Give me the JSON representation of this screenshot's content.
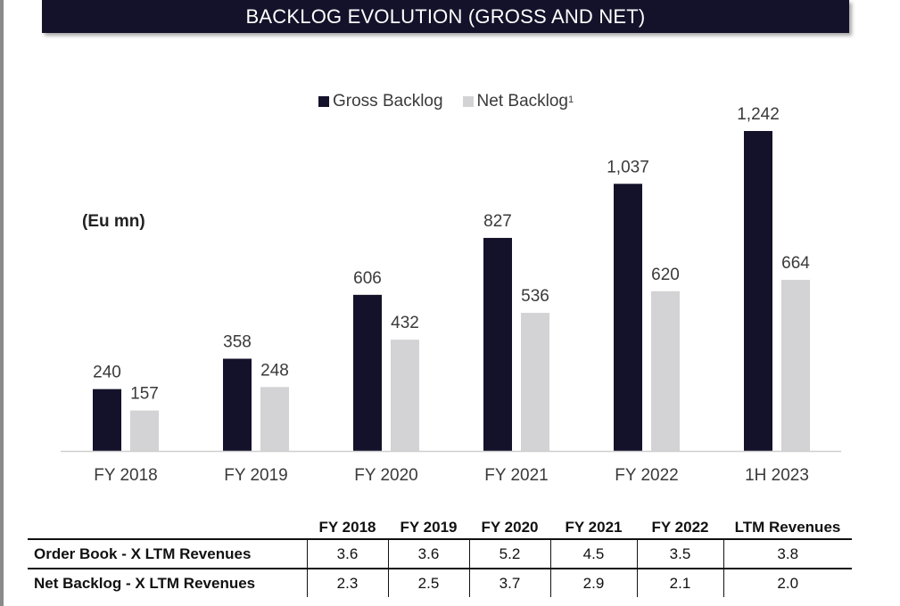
{
  "title": "BACKLOG EVOLUTION (GROSS AND NET)",
  "unit_label": "(Eu mn)",
  "colors": {
    "gross": "#13122a",
    "net": "#d3d2d4",
    "title_bg": "#13122a"
  },
  "chart_data": {
    "type": "bar",
    "title": "BACKLOG EVOLUTION (GROSS AND NET)",
    "categories": [
      "FY 2018",
      "FY 2019",
      "FY 2020",
      "FY 2021",
      "FY 2022",
      "1H 2023"
    ],
    "series": [
      {
        "name": "Gross Backlog",
        "values": [
          240,
          358,
          606,
          827,
          1037,
          1242
        ],
        "labels": [
          "240",
          "358",
          "606",
          "827",
          "1,037",
          "1,242"
        ]
      },
      {
        "name": "Net Backlog",
        "values": [
          157,
          248,
          432,
          536,
          620,
          664
        ],
        "labels": [
          "157",
          "248",
          "432",
          "536",
          "620",
          "664"
        ]
      }
    ],
    "legend": {
      "position": "top-center",
      "net_footnote": "1"
    },
    "ylim": [
      0,
      1242
    ],
    "grid": false
  },
  "table": {
    "columns": [
      "FY 2018",
      "FY 2019",
      "FY 2020",
      "FY 2021",
      "FY 2022",
      "LTM Revenues"
    ],
    "rows": [
      {
        "label": "Order Book - X LTM Revenues",
        "values": [
          "3.6",
          "3.6",
          "5.2",
          "4.5",
          "3.5",
          "3.8"
        ]
      },
      {
        "label": "Net Backlog - X LTM Revenues",
        "values": [
          "2.3",
          "2.5",
          "3.7",
          "2.9",
          "2.1",
          "2.0"
        ]
      }
    ]
  }
}
